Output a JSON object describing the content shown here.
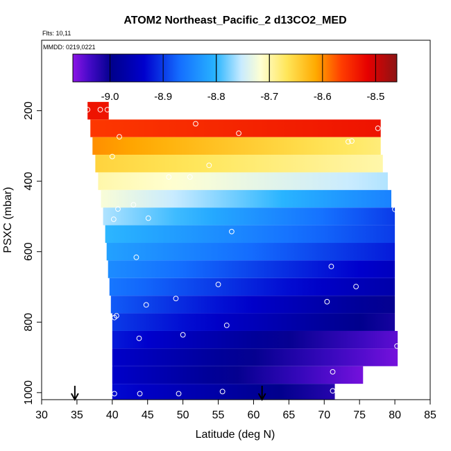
{
  "chart_data": {
    "type": "heatmap",
    "title": "ATOM2 Northeast_Pacific_2 d13CO2_MED",
    "flights_label": "Flts: 10,11",
    "mmdd_label": "MMDD: 0219,0221",
    "xlabel": "Latitude (deg N)",
    "ylabel": "PSXC (mbar)",
    "xlim": [
      30,
      85
    ],
    "ylim": [
      1020,
      0
    ],
    "x_ticks": [
      30,
      35,
      40,
      45,
      50,
      55,
      60,
      65,
      70,
      75,
      80,
      85
    ],
    "x_tick_labels": [
      "30",
      "35",
      "40",
      "45",
      "50",
      "55",
      "60",
      "65",
      "70",
      "75",
      "80",
      "85"
    ],
    "y_ticks": [
      200,
      400,
      600,
      800,
      1000
    ],
    "y_tick_labels": [
      "200",
      "400",
      "600",
      "800",
      "1000"
    ],
    "colorbar": {
      "range": [
        -9.07,
        -8.46
      ],
      "ticks": [
        -9.0,
        -8.9,
        -8.8,
        -8.7,
        -8.6,
        -8.5
      ],
      "tick_labels": [
        "-9.0",
        "-8.9",
        "-8.8",
        "-8.7",
        "-8.6",
        "-8.5"
      ],
      "dividers": [
        -8.8,
        -8.7
      ]
    },
    "arrows_lat": [
      34.7,
      61.2
    ],
    "rows": [
      {
        "p": 200,
        "segments": [
          {
            "x0": 36.5,
            "x1": 39.5,
            "v0": -8.53,
            "v1": -8.53
          }
        ]
      },
      {
        "p": 250,
        "segments": [
          {
            "x0": 36.9,
            "x1": 78.0,
            "v0": -8.56,
            "v1": -8.53
          }
        ]
      },
      {
        "p": 300,
        "segments": [
          {
            "x0": 37.2,
            "x1": 78.0,
            "v0": -8.6,
            "v1": -8.68
          }
        ]
      },
      {
        "p": 350,
        "segments": [
          {
            "x0": 37.6,
            "x1": 78.3,
            "v0": -8.65,
            "v1": -8.7
          }
        ]
      },
      {
        "p": 400,
        "segments": [
          {
            "x0": 38.0,
            "x1": 79.0,
            "v0": -8.7,
            "v1": -8.76
          }
        ]
      },
      {
        "p": 450,
        "segments": [
          {
            "x0": 38.4,
            "x1": 79.5,
            "v0": -8.72,
            "v1": -8.85
          }
        ]
      },
      {
        "p": 500,
        "segments": [
          {
            "x0": 38.7,
            "x1": 80.0,
            "v0": -8.76,
            "v1": -8.9
          }
        ]
      },
      {
        "p": 550,
        "segments": [
          {
            "x0": 39.0,
            "x1": 80.0,
            "v0": -8.8,
            "v1": -8.9
          }
        ]
      },
      {
        "p": 600,
        "segments": [
          {
            "x0": 39.2,
            "x1": 80.0,
            "v0": -8.82,
            "v1": -8.92
          }
        ]
      },
      {
        "p": 650,
        "segments": [
          {
            "x0": 39.4,
            "x1": 80.0,
            "v0": -8.84,
            "v1": -8.95
          }
        ]
      },
      {
        "p": 700,
        "segments": [
          {
            "x0": 39.6,
            "x1": 80.0,
            "v0": -8.86,
            "v1": -8.97
          }
        ]
      },
      {
        "p": 750,
        "segments": [
          {
            "x0": 39.8,
            "x1": 80.0,
            "v0": -8.88,
            "v1": -9.0
          }
        ]
      },
      {
        "p": 800,
        "segments": [
          {
            "x0": 40.0,
            "x1": 80.0,
            "v0": -8.9,
            "v1": -9.01
          }
        ]
      },
      {
        "p": 850,
        "segments": [
          {
            "x0": 40.0,
            "x1": 80.4,
            "v0": -8.92,
            "v1": -9.05
          }
        ]
      },
      {
        "p": 900,
        "segments": [
          {
            "x0": 40.0,
            "x1": 80.4,
            "v0": -8.94,
            "v1": -9.06
          }
        ]
      },
      {
        "p": 950,
        "segments": [
          {
            "x0": 40.0,
            "x1": 75.5,
            "v0": -8.94,
            "v1": -9.06
          }
        ]
      },
      {
        "p": 1000,
        "segments": [
          {
            "x0": 40.0,
            "x1": 71.5,
            "v0": -8.93,
            "v1": -9.02
          }
        ]
      }
    ],
    "points": [
      {
        "lat": 36.5,
        "p": 197
      },
      {
        "lat": 38.3,
        "p": 197
      },
      {
        "lat": 39.3,
        "p": 197
      },
      {
        "lat": 51.8,
        "p": 237
      },
      {
        "lat": 57.9,
        "p": 264
      },
      {
        "lat": 77.6,
        "p": 250
      },
      {
        "lat": 41.0,
        "p": 274
      },
      {
        "lat": 73.4,
        "p": 288
      },
      {
        "lat": 73.9,
        "p": 286
      },
      {
        "lat": 40.0,
        "p": 330
      },
      {
        "lat": 53.7,
        "p": 355
      },
      {
        "lat": 48.0,
        "p": 388
      },
      {
        "lat": 51.0,
        "p": 388
      },
      {
        "lat": 43.0,
        "p": 467
      },
      {
        "lat": 40.8,
        "p": 479
      },
      {
        "lat": 45.1,
        "p": 505
      },
      {
        "lat": 40.2,
        "p": 508
      },
      {
        "lat": 80.0,
        "p": 480
      },
      {
        "lat": 56.9,
        "p": 543
      },
      {
        "lat": 43.4,
        "p": 616
      },
      {
        "lat": 71.0,
        "p": 642
      },
      {
        "lat": 55.0,
        "p": 693
      },
      {
        "lat": 74.5,
        "p": 699
      },
      {
        "lat": 49.0,
        "p": 733
      },
      {
        "lat": 44.8,
        "p": 751
      },
      {
        "lat": 70.4,
        "p": 742
      },
      {
        "lat": 40.6,
        "p": 782
      },
      {
        "lat": 40.3,
        "p": 787
      },
      {
        "lat": 56.2,
        "p": 809
      },
      {
        "lat": 50.0,
        "p": 836
      },
      {
        "lat": 43.8,
        "p": 846
      },
      {
        "lat": 80.3,
        "p": 868
      },
      {
        "lat": 71.2,
        "p": 941
      },
      {
        "lat": 55.6,
        "p": 997
      },
      {
        "lat": 40.3,
        "p": 1003
      },
      {
        "lat": 43.9,
        "p": 1003
      },
      {
        "lat": 49.4,
        "p": 1003
      },
      {
        "lat": 71.2,
        "p": 995
      }
    ]
  }
}
